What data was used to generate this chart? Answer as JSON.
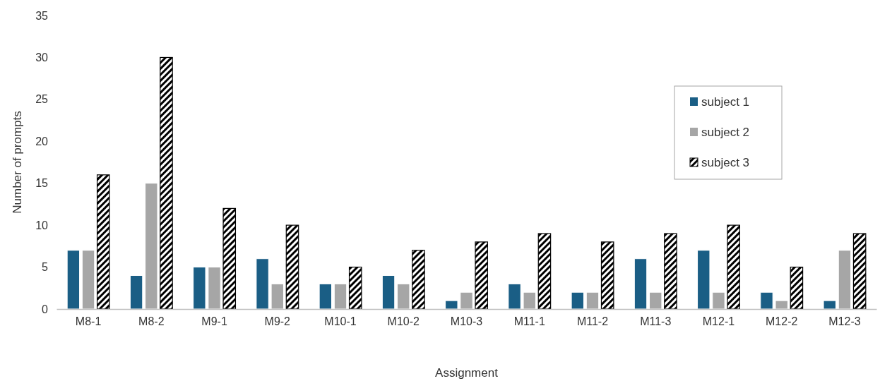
{
  "chart_data": {
    "type": "bar",
    "xlabel": "Assignment",
    "ylabel": "Number  of prompts",
    "categories": [
      "M8-1",
      "M8-2",
      "M9-1",
      "M9-2",
      "M10-1",
      "M10-2",
      "M10-3",
      "M11-1",
      "M11-2",
      "M11-3",
      "M12-1",
      "M12-2",
      "M12-3"
    ],
    "series": [
      {
        "name": "subject 1",
        "color": "#1a5e85",
        "values": [
          7,
          4,
          5,
          6,
          3,
          4,
          1,
          3,
          2,
          6,
          7,
          2,
          1
        ]
      },
      {
        "name": "subject 2",
        "color": "#a6a6a6",
        "values": [
          7,
          15,
          5,
          3,
          3,
          3,
          2,
          2,
          2,
          2,
          2,
          1,
          7
        ]
      },
      {
        "name": "subject 3",
        "color": "#000000",
        "values": [
          16,
          30,
          12,
          10,
          5,
          7,
          8,
          9,
          8,
          9,
          10,
          5,
          9
        ]
      }
    ],
    "ylim": [
      0,
      35
    ],
    "yticks": [
      0,
      5,
      10,
      15,
      20,
      25,
      30,
      35
    ],
    "grid": false,
    "legend": "top right"
  }
}
